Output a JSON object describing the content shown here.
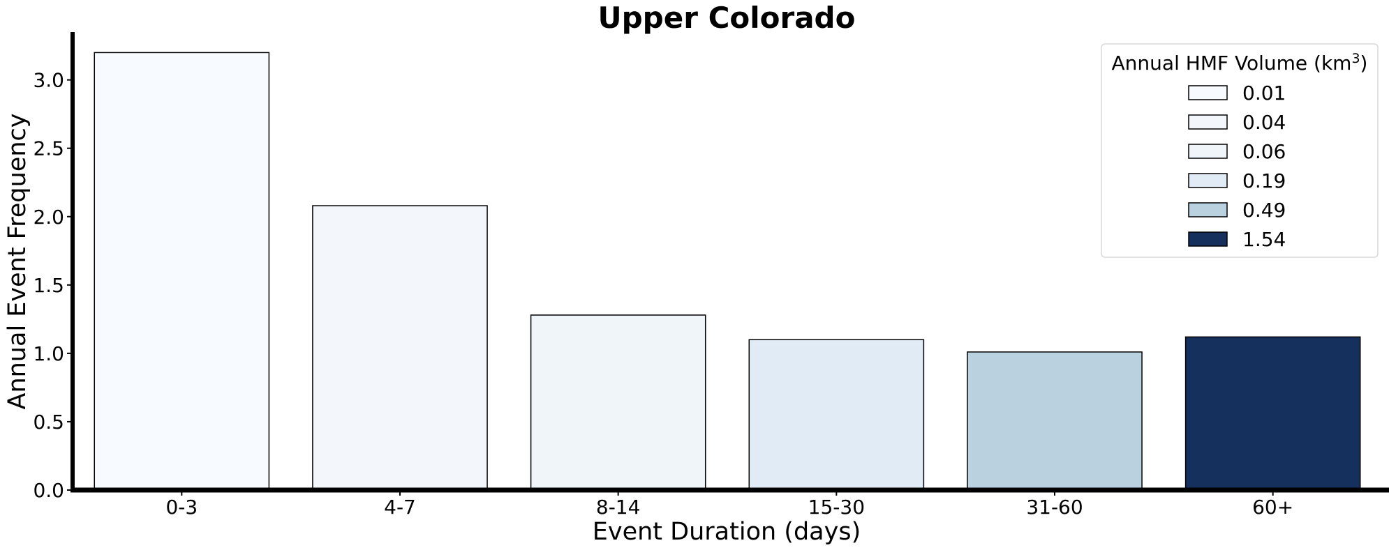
{
  "chart_data": {
    "type": "bar",
    "title": "Upper Colorado",
    "xlabel": "Event Duration (days)",
    "ylabel": "Annual Event Frequency",
    "categories": [
      "0-3",
      "4-7",
      "8-14",
      "15-30",
      "31-60",
      "60+"
    ],
    "values": [
      3.2,
      2.08,
      1.28,
      1.1,
      1.01,
      1.12
    ],
    "bar_colors": [
      "#f7fbff",
      "#f3f7fc",
      "#f0f5fa",
      "#e0ebf5",
      "#bad1e0",
      "#15305c"
    ],
    "ylim": [
      0,
      3.35
    ],
    "yticks": [
      0.0,
      0.5,
      1.0,
      1.5,
      2.0,
      2.5,
      3.0
    ],
    "ytick_labels": [
      "0.0",
      "0.5",
      "1.0",
      "1.5",
      "2.0",
      "2.5",
      "3.0"
    ],
    "grid": false,
    "legend": {
      "title": "Annual HMF Volume (km",
      "title_superscript": "3",
      "title_suffix": ")",
      "placement": "top-right",
      "entries": [
        {
          "label": "0.01",
          "color": "#f7fbff"
        },
        {
          "label": "0.04",
          "color": "#f3f7fc"
        },
        {
          "label": "0.06",
          "color": "#f0f5fa"
        },
        {
          "label": "0.19",
          "color": "#e0ebf5"
        },
        {
          "label": "0.49",
          "color": "#bad1e0"
        },
        {
          "label": "1.54",
          "color": "#15305c"
        }
      ]
    }
  }
}
